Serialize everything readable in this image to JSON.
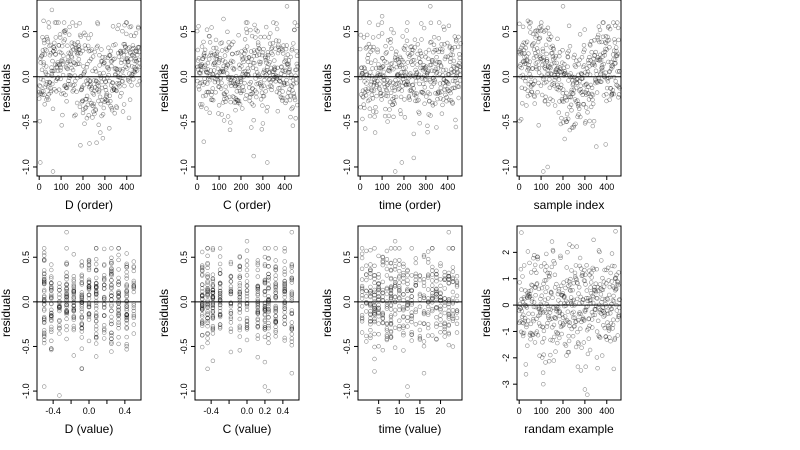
{
  "figure": {
    "background": "#ffffff",
    "point_color": "#000000"
  },
  "chart_data": [
    {
      "type": "scatter",
      "xlabel": "D (order)",
      "ylabel": "residuals",
      "xlim": [
        -10,
        465
      ],
      "ylim": [
        -1.1,
        0.85
      ],
      "xticks": [
        0,
        100,
        200,
        300,
        400
      ],
      "xtick_labels": [
        "0",
        "100",
        "200",
        "300",
        "400"
      ],
      "yticks": [
        -1.0,
        -0.5,
        0.0,
        0.5
      ],
      "ytick_labels": [
        "-1.0",
        "-0.5",
        "0.0",
        "0.5"
      ],
      "hline": 0,
      "grid": false,
      "gen": "order",
      "seed": 11,
      "n": 460,
      "trend": true,
      "points": [
        [
          20,
          0.62
        ],
        [
          58,
          0.74
        ],
        [
          63,
          -1.05
        ],
        [
          188,
          -0.76
        ],
        [
          230,
          -0.74
        ],
        [
          5,
          -0.95
        ]
      ]
    },
    {
      "type": "scatter",
      "xlabel": "C (order)",
      "ylabel": "residuals",
      "xlim": [
        -10,
        465
      ],
      "ylim": [
        -1.1,
        0.85
      ],
      "xticks": [
        0,
        100,
        200,
        300,
        400
      ],
      "xtick_labels": [
        "0",
        "100",
        "200",
        "300",
        "400"
      ],
      "yticks": [
        -1.0,
        -0.5,
        0.0,
        0.5
      ],
      "ytick_labels": [
        "-1.0",
        "-0.5",
        "0.0",
        "0.5"
      ],
      "hline": 0,
      "grid": false,
      "gen": "order",
      "seed": 23,
      "n": 460,
      "trend": false,
      "points": [
        [
          120,
          0.64
        ],
        [
          320,
          -0.95
        ],
        [
          258,
          -0.88
        ],
        [
          30,
          -0.72
        ],
        [
          410,
          0.78
        ]
      ]
    },
    {
      "type": "scatter",
      "xlabel": "time (order)",
      "ylabel": "residuals",
      "xlim": [
        -10,
        465
      ],
      "ylim": [
        -1.1,
        0.85
      ],
      "xticks": [
        0,
        100,
        200,
        300,
        400
      ],
      "xtick_labels": [
        "0",
        "100",
        "200",
        "300",
        "400"
      ],
      "yticks": [
        -1.0,
        -0.5,
        0.0,
        0.5
      ],
      "ytick_labels": [
        "-1.0",
        "-0.5",
        "0.0",
        "0.5"
      ],
      "hline": 0,
      "grid": false,
      "gen": "order",
      "seed": 37,
      "n": 460,
      "trend": false,
      "points": [
        [
          320,
          0.78
        ],
        [
          160,
          -1.05
        ],
        [
          190,
          -0.95
        ],
        [
          100,
          0.67
        ],
        [
          245,
          -0.9
        ]
      ]
    },
    {
      "type": "scatter",
      "xlabel": "sample index",
      "ylabel": "residuals",
      "xlim": [
        -10,
        465
      ],
      "ylim": [
        -1.1,
        0.85
      ],
      "xticks": [
        0,
        100,
        200,
        300,
        400
      ],
      "xtick_labels": [
        "0",
        "100",
        "200",
        "300",
        "400"
      ],
      "yticks": [
        -1.0,
        -0.5,
        0.0,
        0.5
      ],
      "ytick_labels": [
        "-1.0",
        "-0.5",
        "0.0",
        "0.5"
      ],
      "hline": 0,
      "grid": false,
      "gen": "order",
      "seed": 53,
      "n": 460,
      "trend": true,
      "points": [
        [
          200,
          0.78
        ],
        [
          110,
          -1.05
        ],
        [
          130,
          -1.0
        ],
        [
          395,
          -0.75
        ],
        [
          40,
          0.62
        ]
      ]
    },
    {
      "type": "scatter",
      "xlabel": "D (value)",
      "ylabel": "residuals",
      "xlim": [
        -0.58,
        0.58
      ],
      "ylim": [
        -1.1,
        0.85
      ],
      "xticks": [
        -0.4,
        -0.2,
        0.0,
        0.2,
        0.4
      ],
      "xtick_labels": [
        "-0.4",
        "",
        "0.0",
        "",
        "0.4"
      ],
      "yticks": [
        -1.0,
        -0.5,
        0.0,
        0.5
      ],
      "ytick_labels": [
        "-1.0",
        "-0.5",
        "0.0",
        "0.5"
      ],
      "hline": 0,
      "grid": false,
      "gen": "discrete",
      "levels": [
        -0.5,
        -0.42,
        -0.33,
        -0.25,
        -0.17,
        -0.08,
        0.0,
        0.08,
        0.17,
        0.25,
        0.33,
        0.42,
        0.5
      ],
      "seed": 71,
      "n": 460,
      "points": [
        [
          -0.5,
          -0.95
        ],
        [
          -0.33,
          -1.05
        ],
        [
          -0.25,
          0.78
        ],
        [
          0.08,
          0.35
        ],
        [
          -0.08,
          -0.75
        ]
      ]
    },
    {
      "type": "scatter",
      "xlabel": "C (value)",
      "ylabel": "residuals",
      "xlim": [
        -0.58,
        0.58
      ],
      "ylim": [
        -1.1,
        0.85
      ],
      "xticks": [
        -0.4,
        -0.2,
        0.0,
        0.2,
        0.4
      ],
      "xtick_labels": [
        "-0.4",
        "",
        "0.0",
        "0.2",
        "0.4"
      ],
      "yticks": [
        -1.0,
        -0.5,
        0.0,
        0.5
      ],
      "ytick_labels": [
        "-1.0",
        "-0.5",
        "0.0",
        "0.5"
      ],
      "hline": 0,
      "grid": false,
      "gen": "discrete",
      "levels": [
        -0.5,
        -0.44,
        -0.38,
        -0.3,
        -0.18,
        -0.08,
        0.0,
        0.12,
        0.2,
        0.24,
        0.32,
        0.42,
        0.5
      ],
      "seed": 89,
      "n": 460,
      "points": [
        [
          0.0,
          0.68
        ],
        [
          0.2,
          -0.95
        ],
        [
          0.24,
          -1.0
        ],
        [
          0.5,
          0.78
        ],
        [
          -0.44,
          -0.75
        ]
      ]
    },
    {
      "type": "scatter",
      "xlabel": "time (value)",
      "ylabel": "residuals",
      "xlim": [
        0,
        25.2
      ],
      "ylim": [
        -1.1,
        0.85
      ],
      "xticks": [
        5,
        10,
        15,
        20
      ],
      "xtick_labels": [
        "5",
        "10",
        "15",
        "20"
      ],
      "yticks": [
        -1.0,
        -0.5,
        0.0,
        0.5
      ],
      "ytick_labels": [
        "-1.0",
        "-0.5",
        "0.0",
        "0.5"
      ],
      "hline": 0,
      "grid": false,
      "gen": "discrete",
      "levels": [
        1,
        2,
        3,
        4,
        5,
        6,
        7,
        8,
        9,
        10,
        11,
        12,
        13,
        14,
        15,
        16,
        17,
        18,
        19,
        20,
        21,
        22,
        23,
        24
      ],
      "seed": 97,
      "n": 460,
      "points": [
        [
          12,
          -1.05
        ],
        [
          12,
          -0.95
        ],
        [
          9,
          0.68
        ],
        [
          22,
          0.78
        ],
        [
          4,
          -0.78
        ]
      ]
    },
    {
      "type": "scatter",
      "xlabel": "randam example",
      "ylabel": "residuals",
      "xlim": [
        -10,
        465
      ],
      "ylim": [
        -3.6,
        3.0
      ],
      "xticks": [
        0,
        100,
        200,
        300,
        400
      ],
      "xtick_labels": [
        "0",
        "100",
        "200",
        "300",
        "400"
      ],
      "yticks": [
        -3,
        -2,
        -1,
        0,
        1,
        2
      ],
      "ytick_labels": [
        "-3",
        "-2",
        "-1",
        "0",
        "1",
        "2"
      ],
      "hline": 0,
      "grid": false,
      "gen": "normal",
      "seed": 113,
      "n": 460,
      "points": [
        [
          10,
          2.75
        ],
        [
          440,
          2.8
        ],
        [
          300,
          -3.2
        ],
        [
          110,
          -3.0
        ],
        [
          230,
          2.3
        ]
      ]
    }
  ]
}
